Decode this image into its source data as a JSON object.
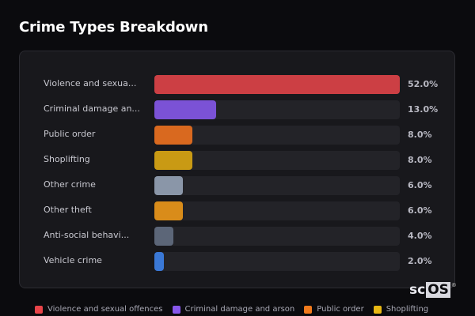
{
  "header": {
    "title": "Crime Types Breakdown"
  },
  "chart_data": {
    "type": "bar",
    "orientation": "horizontal",
    "title": "Crime Types Breakdown",
    "categories": [
      "Violence and sexual offences",
      "Criminal damage and arson",
      "Public order",
      "Shoplifting",
      "Other crime",
      "Other theft",
      "Anti-social behaviour",
      "Vehicle crime"
    ],
    "display_labels": [
      "Violence and sexua...",
      "Criminal damage an...",
      "Public order",
      "Shoplifting",
      "Other crime",
      "Other theft",
      "Anti-social behavi...",
      "Vehicle crime"
    ],
    "values": [
      52.0,
      13.0,
      8.0,
      8.0,
      6.0,
      6.0,
      4.0,
      2.0
    ],
    "value_labels": [
      "52.0%",
      "13.0%",
      "8.0%",
      "8.0%",
      "6.0%",
      "6.0%",
      "4.0%",
      "2.0%"
    ],
    "colors": [
      "#cc3f44",
      "#7b52d6",
      "#d9691f",
      "#c99a14",
      "#8a96a8",
      "#d98c1a",
      "#5c6678",
      "#3a78d6"
    ],
    "max": 52.0,
    "legend": [
      {
        "label": "Violence and sexual offences",
        "color": "#e84449"
      },
      {
        "label": "Criminal damage and arson",
        "color": "#8757ea"
      },
      {
        "label": "Public order",
        "color": "#f07a1c"
      },
      {
        "label": "Shoplifting",
        "color": "#e8b814"
      }
    ]
  },
  "branding": {
    "logo_sc": "sc",
    "logo_os": "OS",
    "logo_reg": "®"
  }
}
